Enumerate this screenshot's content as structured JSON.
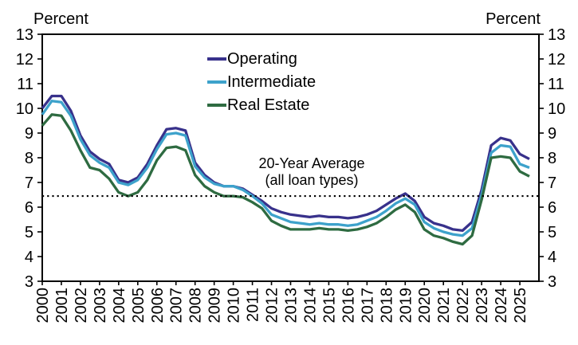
{
  "chart_data": {
    "type": "line",
    "title": "",
    "ylabel_left": "Percent",
    "ylabel_right": "Percent",
    "xlabel": "",
    "ylim": [
      3,
      13
    ],
    "yticks": [
      3,
      4,
      5,
      6,
      7,
      8,
      9,
      10,
      11,
      12,
      13
    ],
    "xlim": [
      2000,
      2026
    ],
    "xticks": [
      2000,
      2001,
      2002,
      2003,
      2004,
      2005,
      2006,
      2007,
      2008,
      2009,
      2010,
      2011,
      2012,
      2013,
      2014,
      2015,
      2016,
      2017,
      2018,
      2019,
      2020,
      2021,
      2022,
      2023,
      2024,
      2025
    ],
    "grid": false,
    "legend_position": "upper center-left inside plot",
    "axis_color": "#000000",
    "x": [
      2000,
      2000.5,
      2001,
      2001.5,
      2002,
      2002.5,
      2003,
      2003.5,
      2004,
      2004.5,
      2005,
      2005.5,
      2006,
      2006.5,
      2007,
      2007.5,
      2008,
      2008.5,
      2009,
      2009.5,
      2010,
      2010.5,
      2011,
      2011.5,
      2012,
      2012.5,
      2013,
      2013.5,
      2014,
      2014.5,
      2015,
      2015.5,
      2016,
      2016.5,
      2017,
      2017.5,
      2018,
      2018.5,
      2019,
      2019.5,
      2020,
      2020.5,
      2021,
      2021.5,
      2022,
      2022.5,
      2023,
      2023.5,
      2024,
      2024.5,
      2025,
      2025.5
    ],
    "series": [
      {
        "name": "Operating",
        "color": "#38318b",
        "values": [
          10.0,
          10.5,
          10.5,
          9.9,
          8.9,
          8.25,
          7.95,
          7.75,
          7.1,
          7.0,
          7.2,
          7.75,
          8.5,
          9.15,
          9.2,
          9.1,
          7.8,
          7.3,
          7.0,
          6.85,
          6.85,
          6.75,
          6.5,
          6.25,
          5.95,
          5.8,
          5.7,
          5.65,
          5.6,
          5.65,
          5.6,
          5.6,
          5.55,
          5.6,
          5.7,
          5.85,
          6.1,
          6.35,
          6.55,
          6.25,
          5.6,
          5.35,
          5.25,
          5.1,
          5.05,
          5.4,
          6.7,
          8.5,
          8.8,
          8.7,
          8.15,
          7.95
        ]
      },
      {
        "name": "Intermediate",
        "color": "#3da2cb",
        "values": [
          9.75,
          10.3,
          10.25,
          9.7,
          8.75,
          8.1,
          7.8,
          7.6,
          7.0,
          6.9,
          7.1,
          7.6,
          8.35,
          8.95,
          9.0,
          8.9,
          7.65,
          7.2,
          6.95,
          6.85,
          6.85,
          6.7,
          6.45,
          6.15,
          5.7,
          5.55,
          5.4,
          5.35,
          5.3,
          5.35,
          5.3,
          5.3,
          5.25,
          5.3,
          5.45,
          5.6,
          5.85,
          6.15,
          6.35,
          6.1,
          5.4,
          5.15,
          5.0,
          4.9,
          4.85,
          5.15,
          6.5,
          8.2,
          8.5,
          8.45,
          7.75,
          7.6
        ]
      },
      {
        "name": "Real Estate",
        "color": "#2e6b41",
        "values": [
          9.3,
          9.75,
          9.7,
          9.1,
          8.3,
          7.6,
          7.5,
          7.15,
          6.6,
          6.45,
          6.6,
          7.1,
          7.9,
          8.4,
          8.45,
          8.3,
          7.3,
          6.85,
          6.6,
          6.45,
          6.45,
          6.4,
          6.2,
          5.95,
          5.45,
          5.25,
          5.1,
          5.1,
          5.1,
          5.15,
          5.1,
          5.1,
          5.05,
          5.1,
          5.2,
          5.35,
          5.6,
          5.9,
          6.1,
          5.8,
          5.1,
          4.85,
          4.75,
          4.6,
          4.5,
          4.85,
          6.3,
          8.0,
          8.05,
          8.0,
          7.45,
          7.25
        ]
      }
    ],
    "average_line": {
      "value": 6.45,
      "style": "dotted",
      "color": "#000000",
      "label_line1": "20-Year Average",
      "label_line2": "(all loan types)"
    }
  }
}
